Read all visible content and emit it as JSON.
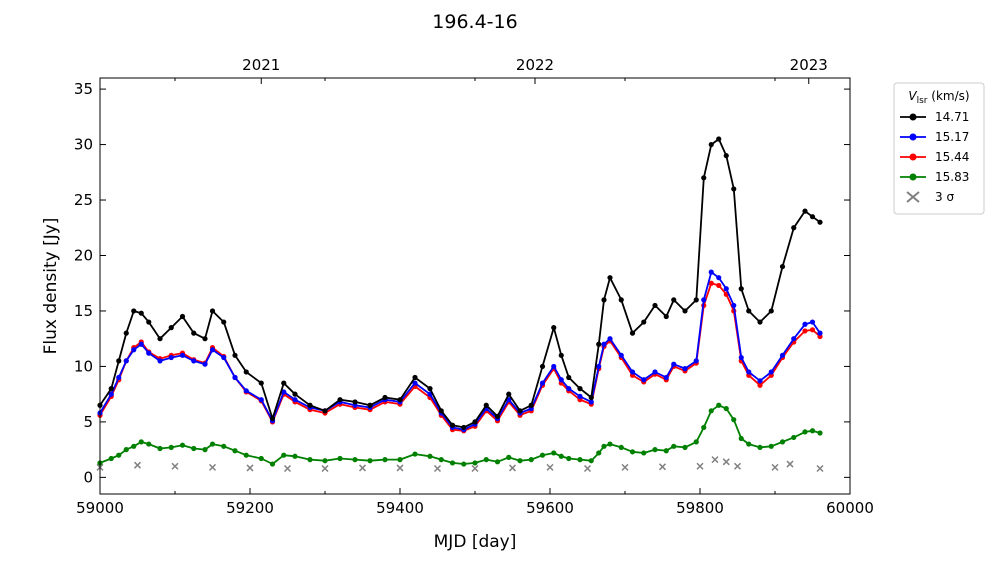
{
  "chart_data": {
    "type": "line",
    "title": "196.4-16",
    "xlabel": "MJD [day]",
    "ylabel": "Flux density [Jy]",
    "xlim": [
      59000,
      60000
    ],
    "ylim": [
      -1.5,
      36
    ],
    "xticks": [
      59000,
      59200,
      59400,
      59600,
      59800,
      60000
    ],
    "xtick_labels": [
      "59000",
      "59200",
      "59400",
      "59600",
      "59800",
      "60000"
    ],
    "yticks": [
      0,
      5,
      10,
      15,
      20,
      25,
      30,
      35
    ],
    "ytick_labels": [
      "0",
      "5",
      "10",
      "15",
      "20",
      "25",
      "30",
      "35"
    ],
    "top_axis": {
      "ticks": [
        59215,
        59580,
        59945
      ],
      "labels": [
        "2021",
        "2022",
        "2023"
      ]
    },
    "grid": false,
    "legend": {
      "placement": "outside-right",
      "title_main": "V",
      "title_sub": "lsr",
      "title_unit": " (km/s)"
    },
    "series": [
      {
        "name": "14.71",
        "color": "#000000",
        "marker": "circle",
        "x": [
          59000,
          59015,
          59025,
          59035,
          59045,
          59055,
          59065,
          59080,
          59095,
          59110,
          59125,
          59140,
          59150,
          59165,
          59180,
          59195,
          59215,
          59230,
          59245,
          59260,
          59280,
          59300,
          59320,
          59340,
          59360,
          59380,
          59400,
          59420,
          59440,
          59455,
          59470,
          59485,
          59500,
          59515,
          59530,
          59545,
          59560,
          59575,
          59590,
          59605,
          59615,
          59625,
          59640,
          59655,
          59665,
          59672,
          59680,
          59695,
          59710,
          59725,
          59740,
          59755,
          59765,
          59780,
          59795,
          59805,
          59815,
          59825,
          59835,
          59845,
          59855,
          59865,
          59880,
          59895,
          59910,
          59925,
          59940,
          59950,
          59960
        ],
        "y": [
          6.5,
          8,
          10.5,
          13,
          15,
          14.8,
          14,
          12.5,
          13.5,
          14.5,
          13,
          12.5,
          15,
          14,
          11,
          9.5,
          8.5,
          5.3,
          8.5,
          7.5,
          6.5,
          6,
          7,
          6.8,
          6.5,
          7.2,
          7,
          9,
          8,
          6,
          4.7,
          4.5,
          5,
          6.5,
          5.5,
          7.5,
          6,
          6.5,
          10,
          13.5,
          11,
          9,
          8,
          7.2,
          12,
          16,
          18,
          16,
          13,
          14,
          15.5,
          14.5,
          16,
          15,
          16,
          27,
          30,
          30.5,
          29,
          26,
          17,
          15,
          14,
          15,
          19,
          22.5,
          24,
          23.5,
          23
        ]
      },
      {
        "name": "15.17",
        "color": "#0000ff",
        "marker": "circle",
        "x": [
          59000,
          59015,
          59025,
          59035,
          59045,
          59055,
          59065,
          59080,
          59095,
          59110,
          59125,
          59140,
          59150,
          59165,
          59180,
          59195,
          59215,
          59230,
          59245,
          59260,
          59280,
          59300,
          59320,
          59340,
          59360,
          59380,
          59400,
          59420,
          59440,
          59455,
          59470,
          59485,
          59500,
          59515,
          59530,
          59545,
          59560,
          59575,
          59590,
          59605,
          59615,
          59625,
          59640,
          59655,
          59665,
          59672,
          59680,
          59695,
          59710,
          59725,
          59740,
          59755,
          59765,
          59780,
          59795,
          59805,
          59815,
          59825,
          59835,
          59845,
          59855,
          59865,
          59880,
          59895,
          59910,
          59925,
          59940,
          59950,
          59960
        ],
        "y": [
          5.8,
          7.5,
          9,
          10.5,
          11.5,
          12,
          11.2,
          10.5,
          10.8,
          11,
          10.5,
          10.2,
          11.5,
          10.8,
          9,
          7.8,
          7,
          5.1,
          7.7,
          7,
          6.3,
          6,
          6.8,
          6.5,
          6.3,
          7,
          6.8,
          8.5,
          7.5,
          5.8,
          4.5,
          4.3,
          4.8,
          6.2,
          5.3,
          7,
          5.8,
          6.2,
          8.5,
          10,
          8.8,
          8,
          7.3,
          6.8,
          10,
          12,
          12.5,
          11,
          9.5,
          8.8,
          9.5,
          9,
          10.2,
          9.8,
          10.5,
          16,
          18.5,
          18,
          17,
          15.5,
          10.8,
          9.5,
          8.7,
          9.5,
          11,
          12.5,
          13.8,
          14,
          13
        ]
      },
      {
        "name": "15.44",
        "color": "#ff0000",
        "marker": "circle",
        "x": [
          59000,
          59015,
          59025,
          59035,
          59045,
          59055,
          59065,
          59080,
          59095,
          59110,
          59125,
          59140,
          59150,
          59165,
          59180,
          59195,
          59215,
          59230,
          59245,
          59260,
          59280,
          59300,
          59320,
          59340,
          59360,
          59380,
          59400,
          59420,
          59440,
          59455,
          59470,
          59485,
          59500,
          59515,
          59530,
          59545,
          59560,
          59575,
          59590,
          59605,
          59615,
          59625,
          59640,
          59655,
          59665,
          59672,
          59680,
          59695,
          59710,
          59725,
          59740,
          59755,
          59765,
          59780,
          59795,
          59805,
          59815,
          59825,
          59835,
          59845,
          59855,
          59865,
          59880,
          59895,
          59910,
          59925,
          59940,
          59950,
          59960
        ],
        "y": [
          5.6,
          7.3,
          8.8,
          10.5,
          11.7,
          12.2,
          11.3,
          10.7,
          11,
          11.2,
          10.6,
          10.3,
          11.7,
          10.9,
          9,
          7.7,
          6.9,
          5,
          7.5,
          6.8,
          6.1,
          5.8,
          6.6,
          6.3,
          6.1,
          6.8,
          6.6,
          8.2,
          7.2,
          5.6,
          4.3,
          4.2,
          4.6,
          6,
          5.1,
          6.8,
          5.6,
          6,
          8.3,
          9.8,
          8.5,
          7.8,
          7,
          6.6,
          9.8,
          11.8,
          12.3,
          10.8,
          9.2,
          8.6,
          9.3,
          8.8,
          10,
          9.6,
          10.3,
          15.5,
          17.5,
          17.3,
          16.5,
          15,
          10.5,
          9.2,
          8.3,
          9.2,
          10.8,
          12.2,
          13.2,
          13.3,
          12.7
        ]
      },
      {
        "name": "15.83",
        "color": "#008000",
        "marker": "circle",
        "x": [
          59000,
          59015,
          59025,
          59035,
          59045,
          59055,
          59065,
          59080,
          59095,
          59110,
          59125,
          59140,
          59150,
          59165,
          59180,
          59195,
          59215,
          59230,
          59245,
          59260,
          59280,
          59300,
          59320,
          59340,
          59360,
          59380,
          59400,
          59420,
          59440,
          59455,
          59470,
          59485,
          59500,
          59515,
          59530,
          59545,
          59560,
          59575,
          59590,
          59605,
          59615,
          59625,
          59640,
          59655,
          59665,
          59672,
          59680,
          59695,
          59710,
          59725,
          59740,
          59755,
          59765,
          59780,
          59795,
          59805,
          59815,
          59825,
          59835,
          59845,
          59855,
          59865,
          59880,
          59895,
          59910,
          59925,
          59940,
          59950,
          59960
        ],
        "y": [
          1.3,
          1.7,
          2,
          2.5,
          2.8,
          3.2,
          3,
          2.6,
          2.7,
          2.9,
          2.6,
          2.5,
          3,
          2.8,
          2.4,
          2,
          1.7,
          1.2,
          2,
          1.9,
          1.6,
          1.5,
          1.7,
          1.6,
          1.5,
          1.6,
          1.6,
          2.1,
          1.9,
          1.6,
          1.3,
          1.2,
          1.3,
          1.6,
          1.4,
          1.8,
          1.5,
          1.6,
          2,
          2.2,
          1.9,
          1.7,
          1.6,
          1.5,
          2.2,
          2.8,
          3,
          2.7,
          2.3,
          2.2,
          2.5,
          2.4,
          2.8,
          2.7,
          3.2,
          4.5,
          6,
          6.5,
          6.2,
          5.2,
          3.5,
          3,
          2.7,
          2.8,
          3.2,
          3.6,
          4.1,
          4.2,
          4
        ]
      }
    ],
    "sigma_series": {
      "name": "3 σ",
      "color": "#808080",
      "marker": "x",
      "x": [
        59000,
        59050,
        59100,
        59150,
        59200,
        59250,
        59300,
        59350,
        59400,
        59450,
        59500,
        59550,
        59600,
        59650,
        59700,
        59750,
        59800,
        59820,
        59835,
        59850,
        59900,
        59920,
        59960
      ],
      "y": [
        0.9,
        1.1,
        1,
        0.9,
        0.85,
        0.8,
        0.8,
        0.85,
        0.85,
        0.8,
        0.8,
        0.85,
        0.9,
        0.8,
        0.9,
        0.95,
        1,
        1.6,
        1.4,
        1,
        0.9,
        1.2,
        0.8
      ]
    }
  }
}
